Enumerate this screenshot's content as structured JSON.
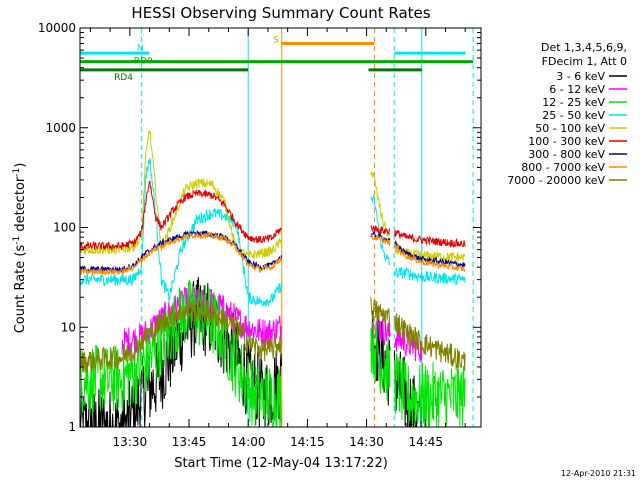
{
  "chart_data": {
    "type": "line",
    "title": "HESSI Observing Summary Count Rates",
    "xlabel": "Start Time (12-May-04 13:17:22)",
    "ylabel_main": "Count Rate (s",
    "ylabel_sup1": "-1",
    "ylabel_mid": " detector",
    "ylabel_sup2": "-1",
    "ylabel_end": ")",
    "yscale": "log",
    "xlim": [
      "13:17:22",
      "14:59:00"
    ],
    "ylim": [
      1,
      10000
    ],
    "x_ticks": [
      "13:30",
      "13:45",
      "14:00",
      "14:15",
      "14:30",
      "14:45"
    ],
    "y_ticks": [
      "1",
      "10",
      "100",
      "1000",
      "10000"
    ],
    "legend_header": [
      "Det 1,3,4,5,6,9,",
      "FDecim 1, Att 0"
    ],
    "legend_placement": "right",
    "footer_timestamp": "12-Apr-2010 21:31",
    "flag_bars": [
      {
        "label": "N",
        "color": "#00e5ee",
        "level": 5600,
        "segments": [
          [
            "13:17:22",
            "13:35:00"
          ],
          [
            "14:37:00",
            "14:55:00"
          ]
        ]
      },
      {
        "label": "RD0",
        "color": "#00aa00",
        "level": 4600,
        "segments": [
          [
            "13:17:22",
            "14:57:00"
          ]
        ]
      },
      {
        "label": "RD4",
        "color": "#007700",
        "level": 3800,
        "segments": [
          [
            "13:17:22",
            "14:00:00"
          ],
          [
            "14:30:30",
            "14:44:00"
          ]
        ]
      },
      {
        "label": "S",
        "color": "#ff8c00",
        "level": 7000,
        "segments": [
          [
            "14:08:30",
            "14:32:00"
          ]
        ]
      }
    ],
    "vertical_markers": [
      {
        "color": "#00e5ee",
        "style": "dashed",
        "x": "13:33:00"
      },
      {
        "color": "#00e5ee",
        "style": "solid",
        "x": "14:00:00"
      },
      {
        "color": "#ff8c00",
        "style": "solid",
        "x": "14:08:30"
      },
      {
        "color": "#ff8c00",
        "style": "dashed",
        "x": "14:32:00"
      },
      {
        "color": "#00e5ee",
        "style": "dashed",
        "x": "14:37:00"
      },
      {
        "color": "#00e5ee",
        "style": "solid",
        "x": "14:44:00"
      },
      {
        "color": "#00e5ee",
        "style": "dashed",
        "x": "14:57:00"
      }
    ],
    "series": [
      {
        "name": "3 - 6 keV",
        "color": "#000000",
        "noise": 0.4,
        "gaps": [
          [
            "14:08:30",
            "14:31:00"
          ],
          [
            "14:36:00",
            "14:37:00"
          ]
        ],
        "x": [
          "13:17:22",
          "13:29:00",
          "13:33:00",
          "13:37:00",
          "13:41:00",
          "13:44:00",
          "13:47:00",
          "13:50:00",
          "13:53:00",
          "13:57:00",
          "14:00:00",
          "14:04:00",
          "14:08:00",
          "14:31:00",
          "14:33:00",
          "14:37:00",
          "14:40:00",
          "14:44:00"
        ],
        "y": [
          1,
          1,
          2,
          3,
          6,
          10,
          13,
          12,
          9,
          5,
          3,
          2,
          3,
          10,
          6,
          3,
          2,
          1
        ]
      },
      {
        "name": "6 - 12 keV",
        "color": "#ff00ff",
        "noise": 0.15,
        "gaps": [
          [
            "14:08:30",
            "14:31:00"
          ],
          [
            "14:36:00",
            "14:37:00"
          ]
        ],
        "x": [
          "13:28:00",
          "13:33:00",
          "13:37:00",
          "13:41:00",
          "13:44:00",
          "13:47:00",
          "13:50:00",
          "13:53:00",
          "13:57:00",
          "14:00:00",
          "14:03:00",
          "14:06:00",
          "14:08:00",
          "14:31:00",
          "14:33:00",
          "14:37:00",
          "14:40:00",
          "14:44:00"
        ],
        "y": [
          7,
          8,
          11,
          15,
          18,
          18,
          17,
          16,
          12,
          10,
          9,
          9,
          10,
          12,
          10,
          8,
          7,
          6
        ]
      },
      {
        "name": "12 - 25 keV",
        "color": "#00e600",
        "noise": 0.35,
        "gaps": [
          [
            "14:08:30",
            "14:31:00"
          ],
          [
            "14:36:00",
            "14:37:00"
          ]
        ],
        "x": [
          "13:17:22",
          "13:28:00",
          "13:33:00",
          "13:37:00",
          "13:41:00",
          "13:44:00",
          "13:47:00",
          "13:50:00",
          "13:53:00",
          "13:56:00",
          "13:59:00",
          "14:02:00",
          "14:08:00",
          "14:31:00",
          "14:33:00",
          "14:37:00",
          "14:40:00",
          "14:44:00",
          "14:55:00"
        ],
        "y": [
          3,
          3,
          4,
          6,
          10,
          14,
          14,
          12,
          9,
          5,
          3,
          2,
          2,
          8,
          5,
          3,
          2,
          2,
          2
        ]
      },
      {
        "name": "25 - 50 keV",
        "color": "#00e5ee",
        "noise": 0.06,
        "gaps": [
          [
            "14:08:30",
            "14:31:00"
          ],
          [
            "14:36:00",
            "14:37:00"
          ]
        ],
        "x": [
          "13:17:22",
          "13:28:00",
          "13:31:00",
          "13:33:00",
          "13:34:00",
          "13:35:00",
          "13:36:30",
          "13:38:00",
          "13:40:00",
          "13:43:00",
          "13:47:00",
          "13:51:00",
          "13:54:00",
          "13:57:00",
          "14:00:00",
          "14:03:00",
          "14:06:00",
          "14:08:00",
          "14:31:00",
          "14:32:00",
          "14:34:00",
          "14:37:00",
          "14:40:00",
          "14:44:00",
          "14:55:00"
        ],
        "y": [
          30,
          30,
          30,
          42,
          320,
          500,
          150,
          30,
          20,
          60,
          120,
          140,
          130,
          110,
          20,
          18,
          19,
          25,
          200,
          180,
          60,
          35,
          35,
          32,
          30
        ]
      },
      {
        "name": "50 - 100 keV",
        "color": "#cccc00",
        "noise": 0.05,
        "gaps": [
          [
            "14:08:30",
            "14:31:00"
          ],
          [
            "14:36:00",
            "14:37:00"
          ]
        ],
        "x": [
          "13:17:22",
          "13:28:00",
          "13:31:00",
          "13:33:00",
          "13:34:00",
          "13:35:00",
          "13:36:30",
          "13:38:00",
          "13:41:00",
          "13:44:00",
          "13:47:00",
          "13:51:00",
          "13:54:00",
          "13:57:00",
          "14:00:00",
          "14:03:00",
          "14:06:00",
          "14:08:00",
          "14:31:00",
          "14:32:00",
          "14:34:00",
          "14:37:00",
          "14:40:00",
          "14:44:00",
          "14:55:00"
        ],
        "y": [
          60,
          60,
          65,
          80,
          500,
          1000,
          250,
          60,
          120,
          240,
          280,
          270,
          180,
          60,
          52,
          55,
          58,
          70,
          380,
          300,
          120,
          60,
          55,
          52,
          50
        ]
      },
      {
        "name": "100 - 300 keV",
        "color": "#e60000",
        "noise": 0.04,
        "gaps": [
          [
            "14:08:30",
            "14:31:00"
          ],
          [
            "14:36:00",
            "14:37:00"
          ]
        ],
        "x": [
          "13:17:22",
          "13:28:00",
          "13:31:00",
          "13:33:00",
          "13:34:00",
          "13:35:00",
          "13:36:30",
          "13:38:00",
          "13:41:00",
          "13:44:00",
          "13:47:00",
          "13:51:00",
          "13:54:00",
          "13:57:00",
          "14:00:00",
          "14:03:00",
          "14:06:00",
          "14:08:00",
          "14:31:00",
          "14:33:00",
          "14:37:00",
          "14:40:00",
          "14:44:00",
          "14:55:00"
        ],
        "y": [
          65,
          65,
          70,
          90,
          180,
          300,
          130,
          100,
          150,
          200,
          220,
          210,
          170,
          110,
          80,
          75,
          78,
          95,
          100,
          95,
          90,
          80,
          75,
          68
        ]
      },
      {
        "name": "300 - 800 keV",
        "color": "#00008b",
        "noise": 0.03,
        "gaps": [
          [
            "14:08:30",
            "14:31:00"
          ],
          [
            "14:36:00",
            "14:37:00"
          ]
        ],
        "x": [
          "13:17:22",
          "13:28:00",
          "13:31:00",
          "13:34:00",
          "13:38:00",
          "13:42:00",
          "13:46:00",
          "13:50:00",
          "13:54:00",
          "13:57:00",
          "14:00:00",
          "14:03:00",
          "14:06:00",
          "14:08:00",
          "14:31:00",
          "14:33:00",
          "14:37:00",
          "14:40:00",
          "14:44:00",
          "14:55:00"
        ],
        "y": [
          38,
          38,
          42,
          55,
          70,
          80,
          88,
          86,
          80,
          65,
          45,
          40,
          42,
          50,
          85,
          82,
          70,
          55,
          48,
          42
        ]
      },
      {
        "name": "800 - 7000 keV",
        "color": "#ff8c00",
        "noise": 0.03,
        "gaps": [
          [
            "14:08:30",
            "14:31:00"
          ],
          [
            "14:36:00",
            "14:37:00"
          ]
        ],
        "x": [
          "13:17:22",
          "13:28:00",
          "13:31:00",
          "13:34:00",
          "13:38:00",
          "13:42:00",
          "13:46:00",
          "13:50:00",
          "13:54:00",
          "13:57:00",
          "14:00:00",
          "14:03:00",
          "14:06:00",
          "14:08:00",
          "14:31:00",
          "14:33:00",
          "14:37:00",
          "14:40:00",
          "14:44:00",
          "14:55:00"
        ],
        "y": [
          36,
          36,
          40,
          52,
          66,
          76,
          84,
          83,
          78,
          62,
          42,
          38,
          40,
          48,
          80,
          78,
          66,
          52,
          45,
          38
        ]
      },
      {
        "name": "7000 - 20000 keV",
        "color": "#808000",
        "noise": 0.12,
        "gaps": [
          [
            "14:08:30",
            "14:31:00"
          ],
          [
            "14:36:00",
            "14:37:00"
          ]
        ],
        "x": [
          "13:17:22",
          "13:28:00",
          "13:31:00",
          "13:34:00",
          "13:38:00",
          "13:42:00",
          "13:46:00",
          "13:50:00",
          "13:54:00",
          "13:57:00",
          "14:00:00",
          "14:03:00",
          "14:06:00",
          "14:08:00",
          "14:31:00",
          "14:33:00",
          "14:37:00",
          "14:40:00",
          "14:44:00",
          "14:55:00"
        ],
        "y": [
          4.5,
          5,
          6,
          8,
          11,
          14,
          15,
          14,
          12,
          10,
          7,
          6,
          6,
          7,
          16,
          14,
          12,
          9,
          7,
          4.5
        ]
      }
    ]
  }
}
